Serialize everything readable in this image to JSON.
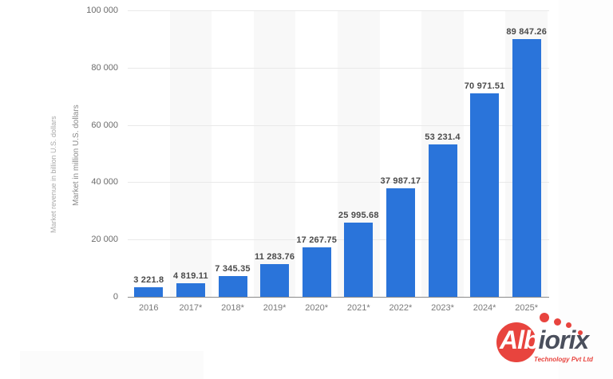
{
  "chart_data": {
    "type": "bar",
    "title": "",
    "xlabel": "",
    "ylabel": "Market in million U.S. dollars",
    "ylabel_ghost": "Market revenue in billion U.S. dollars",
    "categories": [
      "2016",
      "2017*",
      "2018*",
      "2019*",
      "2020*",
      "2021*",
      "2022*",
      "2023*",
      "2024*",
      "2025*"
    ],
    "values": [
      3221.8,
      4819.11,
      7345.35,
      11283.76,
      17267.75,
      25995.68,
      37987.17,
      53231.4,
      70971.51,
      89847.26
    ],
    "value_labels": [
      "3 221.8",
      "4 819.11",
      "7 345.35",
      "11 283.76",
      "17 267.75",
      "25 995.68",
      "37 987.17",
      "53 231.4",
      "70 971.51",
      "89 847.26"
    ],
    "yticks": [
      0,
      20000,
      40000,
      60000,
      80000,
      100000
    ],
    "ytick_labels": [
      "0",
      "20 000",
      "40 000",
      "60 000",
      "80 000",
      "100 000"
    ],
    "ylim": [
      0,
      100000
    ],
    "grid": true,
    "legend": null,
    "bar_color": "#2a74da"
  },
  "branding": {
    "logo_part1": "Alb",
    "logo_part2": "iorix",
    "logo_sub": "Technology Pvt Ltd",
    "logo_color": "#e8443e"
  }
}
